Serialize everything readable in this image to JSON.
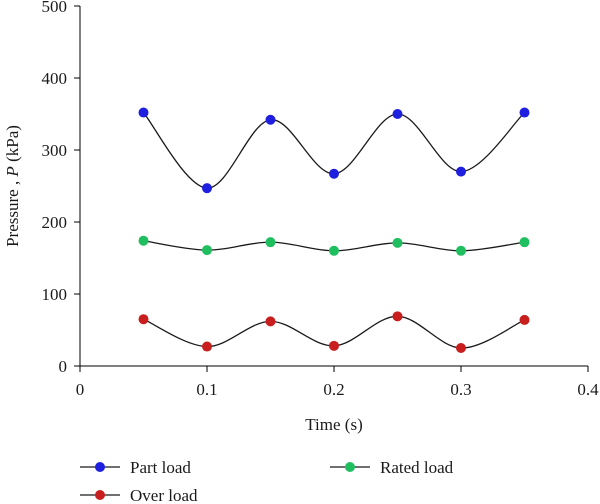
{
  "chart_data": {
    "type": "line",
    "xlabel": "Time (s)",
    "ylabel_parts": [
      "Pressure , ",
      "P",
      " (kPa)"
    ],
    "xlim": [
      0,
      0.4
    ],
    "ylim": [
      0,
      500
    ],
    "x_ticks": [
      "0",
      "0.1",
      "0.2",
      "0.3",
      "0.4"
    ],
    "y_ticks": [
      "0",
      "100",
      "200",
      "300",
      "400",
      "500"
    ],
    "grid": false,
    "legend_position": "bottom",
    "series": [
      {
        "name": "Part load",
        "color": "#1f1fe0",
        "x": [
          0.05,
          0.1,
          0.15,
          0.2,
          0.25,
          0.3,
          0.35
        ],
        "y": [
          352,
          247,
          342,
          267,
          350,
          270,
          352
        ]
      },
      {
        "name": "Rated load",
        "color": "#1fbf5f",
        "x": [
          0.05,
          0.1,
          0.15,
          0.2,
          0.25,
          0.3,
          0.35
        ],
        "y": [
          174,
          161,
          172,
          160,
          171,
          160,
          172
        ]
      },
      {
        "name": "Over load",
        "color": "#c81e1e",
        "x": [
          0.05,
          0.1,
          0.15,
          0.2,
          0.25,
          0.3,
          0.35
        ],
        "y": [
          65,
          27,
          62,
          28,
          69,
          25,
          64
        ]
      }
    ]
  }
}
